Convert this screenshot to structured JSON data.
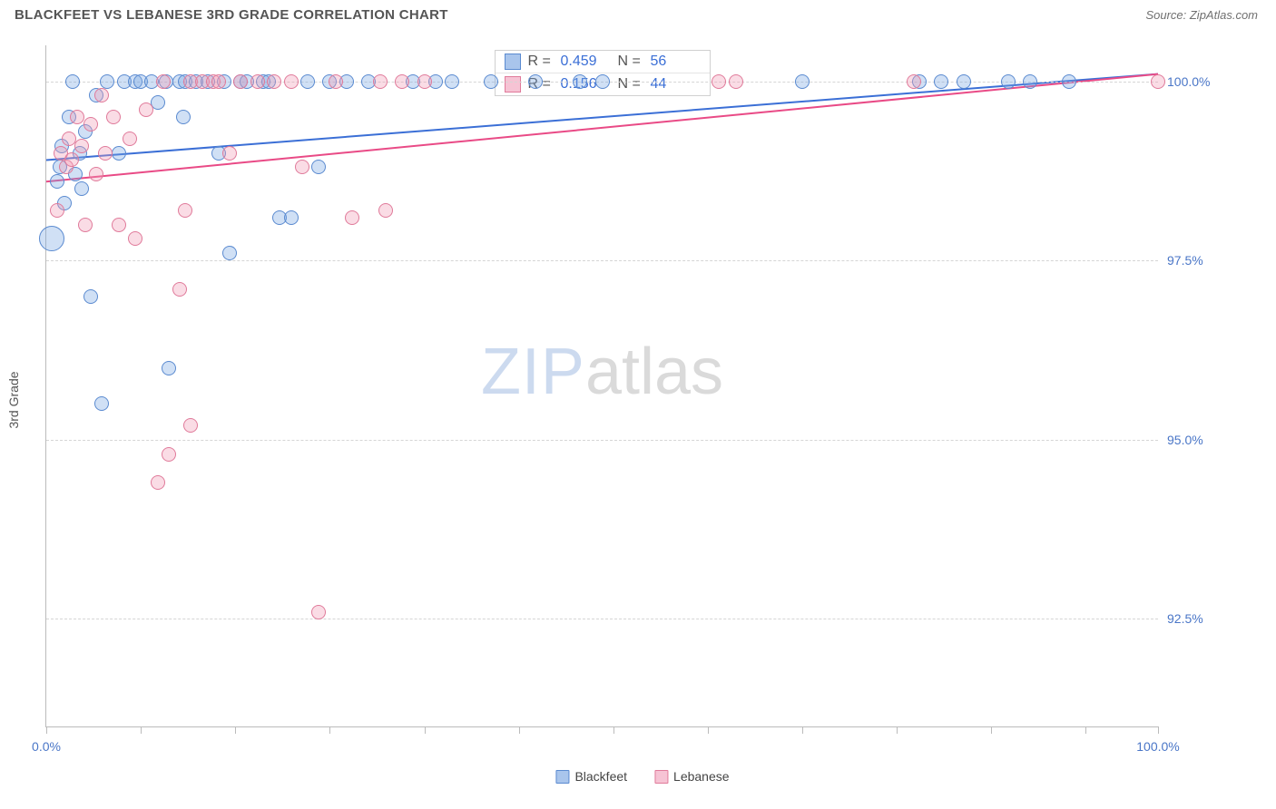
{
  "header": {
    "title": "BLACKFEET VS LEBANESE 3RD GRADE CORRELATION CHART",
    "source": "Source: ZipAtlas.com"
  },
  "chart": {
    "type": "scatter",
    "background_color": "#ffffff",
    "grid_color": "#d5d5d5",
    "axis_color": "#bbbbbb",
    "ylabel": "3rd Grade",
    "label_fontsize": 14,
    "label_color": "#555555",
    "tick_label_color": "#4a76c7",
    "xlim": [
      0,
      100
    ],
    "ylim": [
      91.0,
      100.5
    ],
    "xtick_minor_positions": [
      0,
      8.5,
      17,
      25.5,
      34,
      42.5,
      51,
      59.5,
      68,
      76.5,
      85,
      93.5,
      100
    ],
    "xtick_labels": [
      {
        "pos": 0,
        "text": "0.0%"
      },
      {
        "pos": 100,
        "text": "100.0%"
      }
    ],
    "ytick_gridlines": [
      92.5,
      95.0,
      97.5,
      100.0
    ],
    "ytick_labels": [
      {
        "pos": 92.5,
        "text": "92.5%"
      },
      {
        "pos": 95.0,
        "text": "95.0%"
      },
      {
        "pos": 97.5,
        "text": "97.5%"
      },
      {
        "pos": 100.0,
        "text": "100.0%"
      }
    ],
    "series": [
      {
        "name": "Blackfeet",
        "marker_color_fill": "rgba(120,165,225,0.35)",
        "marker_color_stroke": "#5a8ad0",
        "line_color": "#3b6fd6",
        "line_width": 2,
        "swatch_fill": "#a9c5ec",
        "swatch_border": "#5a8ad0",
        "trend": {
          "x1": 0,
          "y1": 98.9,
          "x2": 100,
          "y2": 100.1
        },
        "stats": {
          "R": "0.459",
          "N": "56"
        },
        "points": [
          {
            "x": 0.5,
            "y": 97.8,
            "r": 14
          },
          {
            "x": 1.0,
            "y": 98.6,
            "r": 8
          },
          {
            "x": 1.2,
            "y": 98.8,
            "r": 8
          },
          {
            "x": 1.4,
            "y": 99.1,
            "r": 8
          },
          {
            "x": 1.6,
            "y": 98.3,
            "r": 8
          },
          {
            "x": 2.0,
            "y": 99.5,
            "r": 8
          },
          {
            "x": 2.4,
            "y": 100.0,
            "r": 8
          },
          {
            "x": 2.6,
            "y": 98.7,
            "r": 8
          },
          {
            "x": 3.0,
            "y": 99.0,
            "r": 8
          },
          {
            "x": 3.2,
            "y": 98.5,
            "r": 8
          },
          {
            "x": 3.5,
            "y": 99.3,
            "r": 8
          },
          {
            "x": 4.0,
            "y": 97.0,
            "r": 8
          },
          {
            "x": 4.5,
            "y": 99.8,
            "r": 8
          },
          {
            "x": 5.0,
            "y": 95.5,
            "r": 8
          },
          {
            "x": 5.5,
            "y": 100.0,
            "r": 8
          },
          {
            "x": 6.5,
            "y": 99.0,
            "r": 8
          },
          {
            "x": 7.0,
            "y": 100.0,
            "r": 8
          },
          {
            "x": 8.0,
            "y": 100.0,
            "r": 8
          },
          {
            "x": 8.5,
            "y": 100.0,
            "r": 8
          },
          {
            "x": 9.5,
            "y": 100.0,
            "r": 8
          },
          {
            "x": 10.0,
            "y": 99.7,
            "r": 8
          },
          {
            "x": 10.8,
            "y": 100.0,
            "r": 8
          },
          {
            "x": 11.0,
            "y": 96.0,
            "r": 8
          },
          {
            "x": 12.0,
            "y": 100.0,
            "r": 8
          },
          {
            "x": 12.3,
            "y": 99.5,
            "r": 8
          },
          {
            "x": 12.5,
            "y": 100.0,
            "r": 8
          },
          {
            "x": 13.5,
            "y": 100.0,
            "r": 8
          },
          {
            "x": 14.5,
            "y": 100.0,
            "r": 8
          },
          {
            "x": 15.5,
            "y": 99.0,
            "r": 8
          },
          {
            "x": 16.0,
            "y": 100.0,
            "r": 8
          },
          {
            "x": 16.5,
            "y": 97.6,
            "r": 8
          },
          {
            "x": 17.5,
            "y": 100.0,
            "r": 8
          },
          {
            "x": 18.0,
            "y": 100.0,
            "r": 8
          },
          {
            "x": 19.5,
            "y": 100.0,
            "r": 8
          },
          {
            "x": 20.0,
            "y": 100.0,
            "r": 8
          },
          {
            "x": 21.0,
            "y": 98.1,
            "r": 8
          },
          {
            "x": 22.0,
            "y": 98.1,
            "r": 8
          },
          {
            "x": 23.5,
            "y": 100.0,
            "r": 8
          },
          {
            "x": 24.5,
            "y": 98.8,
            "r": 8
          },
          {
            "x": 25.5,
            "y": 100.0,
            "r": 8
          },
          {
            "x": 27.0,
            "y": 100.0,
            "r": 8
          },
          {
            "x": 29.0,
            "y": 100.0,
            "r": 8
          },
          {
            "x": 33.0,
            "y": 100.0,
            "r": 8
          },
          {
            "x": 35.0,
            "y": 100.0,
            "r": 8
          },
          {
            "x": 36.5,
            "y": 100.0,
            "r": 8
          },
          {
            "x": 40.0,
            "y": 100.0,
            "r": 8
          },
          {
            "x": 44.0,
            "y": 100.0,
            "r": 8
          },
          {
            "x": 48.0,
            "y": 100.0,
            "r": 8
          },
          {
            "x": 50.0,
            "y": 100.0,
            "r": 8
          },
          {
            "x": 68.0,
            "y": 100.0,
            "r": 8
          },
          {
            "x": 78.5,
            "y": 100.0,
            "r": 8
          },
          {
            "x": 80.5,
            "y": 100.0,
            "r": 8
          },
          {
            "x": 82.5,
            "y": 100.0,
            "r": 8
          },
          {
            "x": 86.5,
            "y": 100.0,
            "r": 8
          },
          {
            "x": 88.5,
            "y": 100.0,
            "r": 8
          },
          {
            "x": 92.0,
            "y": 100.0,
            "r": 8
          }
        ]
      },
      {
        "name": "Lebanese",
        "marker_color_fill": "rgba(240,155,180,0.35)",
        "marker_color_stroke": "#e07a9a",
        "line_color": "#e94a86",
        "line_width": 2,
        "swatch_fill": "#f6c3d4",
        "swatch_border": "#e07a9a",
        "trend": {
          "x1": 0,
          "y1": 98.6,
          "x2": 100,
          "y2": 100.1
        },
        "stats": {
          "R": "0.156",
          "N": "44"
        },
        "points": [
          {
            "x": 1.0,
            "y": 98.2,
            "r": 8
          },
          {
            "x": 1.3,
            "y": 99.0,
            "r": 8
          },
          {
            "x": 1.8,
            "y": 98.8,
            "r": 8
          },
          {
            "x": 2.0,
            "y": 99.2,
            "r": 8
          },
          {
            "x": 2.3,
            "y": 98.9,
            "r": 8
          },
          {
            "x": 2.8,
            "y": 99.5,
            "r": 8
          },
          {
            "x": 3.2,
            "y": 99.1,
            "r": 8
          },
          {
            "x": 3.5,
            "y": 98.0,
            "r": 8
          },
          {
            "x": 4.0,
            "y": 99.4,
            "r": 8
          },
          {
            "x": 4.5,
            "y": 98.7,
            "r": 8
          },
          {
            "x": 5.0,
            "y": 99.8,
            "r": 8
          },
          {
            "x": 5.3,
            "y": 99.0,
            "r": 8
          },
          {
            "x": 6.0,
            "y": 99.5,
            "r": 8
          },
          {
            "x": 6.5,
            "y": 98.0,
            "r": 8
          },
          {
            "x": 7.5,
            "y": 99.2,
            "r": 8
          },
          {
            "x": 8.0,
            "y": 97.8,
            "r": 8
          },
          {
            "x": 9.0,
            "y": 99.6,
            "r": 8
          },
          {
            "x": 10.0,
            "y": 94.4,
            "r": 8
          },
          {
            "x": 10.5,
            "y": 100.0,
            "r": 8
          },
          {
            "x": 11.0,
            "y": 94.8,
            "r": 8
          },
          {
            "x": 12.0,
            "y": 97.1,
            "r": 8
          },
          {
            "x": 12.5,
            "y": 98.2,
            "r": 8
          },
          {
            "x": 13.0,
            "y": 95.2,
            "r": 8
          },
          {
            "x": 13.0,
            "y": 100.0,
            "r": 8
          },
          {
            "x": 14.0,
            "y": 100.0,
            "r": 8
          },
          {
            "x": 15.0,
            "y": 100.0,
            "r": 8
          },
          {
            "x": 15.5,
            "y": 100.0,
            "r": 8
          },
          {
            "x": 16.5,
            "y": 99.0,
            "r": 8
          },
          {
            "x": 17.5,
            "y": 100.0,
            "r": 8
          },
          {
            "x": 19.0,
            "y": 100.0,
            "r": 8
          },
          {
            "x": 20.5,
            "y": 100.0,
            "r": 8
          },
          {
            "x": 22.0,
            "y": 100.0,
            "r": 8
          },
          {
            "x": 23.0,
            "y": 98.8,
            "r": 8
          },
          {
            "x": 24.5,
            "y": 92.6,
            "r": 8
          },
          {
            "x": 26.0,
            "y": 100.0,
            "r": 8
          },
          {
            "x": 27.5,
            "y": 98.1,
            "r": 8
          },
          {
            "x": 30.0,
            "y": 100.0,
            "r": 8
          },
          {
            "x": 30.5,
            "y": 98.2,
            "r": 8
          },
          {
            "x": 32.0,
            "y": 100.0,
            "r": 8
          },
          {
            "x": 34.0,
            "y": 100.0,
            "r": 8
          },
          {
            "x": 60.5,
            "y": 100.0,
            "r": 8
          },
          {
            "x": 62.0,
            "y": 100.0,
            "r": 8
          },
          {
            "x": 78.0,
            "y": 100.0,
            "r": 8
          },
          {
            "x": 100.0,
            "y": 100.0,
            "r": 8
          }
        ]
      }
    ],
    "watermark": {
      "zip": "ZIP",
      "atlas": "atlas"
    }
  }
}
